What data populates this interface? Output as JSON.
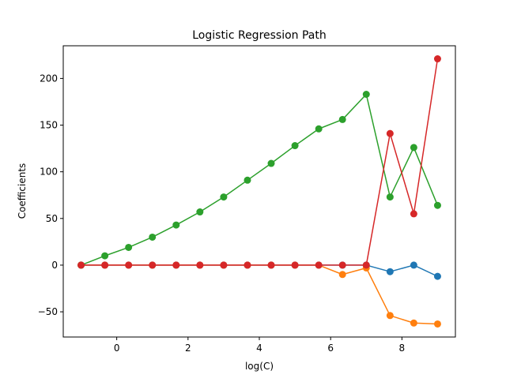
{
  "chart_data": {
    "type": "line",
    "title": "Logistic Regression Path",
    "xlabel": "log(C)",
    "ylabel": "Coefficients",
    "xlim": [
      -1.5,
      9.5
    ],
    "ylim": [
      -77,
      235
    ],
    "xticks": [
      0,
      2,
      4,
      6,
      8
    ],
    "yticks": [
      -50,
      0,
      50,
      100,
      150,
      200
    ],
    "ytick_labels": [
      "−50",
      "0",
      "50",
      "100",
      "150",
      "200"
    ],
    "grid": false,
    "legend": "none",
    "x": [
      -1.0,
      -0.333,
      0.333,
      1.0,
      1.667,
      2.333,
      3.0,
      3.667,
      4.333,
      5.0,
      5.667,
      6.333,
      7.0,
      7.667,
      8.333,
      9.0
    ],
    "series": [
      {
        "color": "#1f77b4",
        "values": [
          0,
          0,
          0,
          0,
          0,
          0,
          0,
          0,
          0,
          0,
          0,
          0,
          0,
          -7,
          0,
          -12
        ]
      },
      {
        "color": "#ff7f0e",
        "values": [
          0,
          0,
          0,
          0,
          0,
          0,
          0,
          0,
          0,
          0,
          0,
          -10,
          -3,
          -54,
          -62,
          -63
        ]
      },
      {
        "color": "#2ca02c",
        "values": [
          0,
          10,
          19,
          30,
          43,
          57,
          73,
          91,
          109,
          128,
          146,
          156,
          183,
          73,
          126,
          64
        ]
      },
      {
        "color": "#d62728",
        "values": [
          0,
          0,
          0,
          0,
          0,
          0,
          0,
          0,
          0,
          0,
          0,
          0,
          0,
          141,
          55,
          221
        ]
      }
    ]
  }
}
